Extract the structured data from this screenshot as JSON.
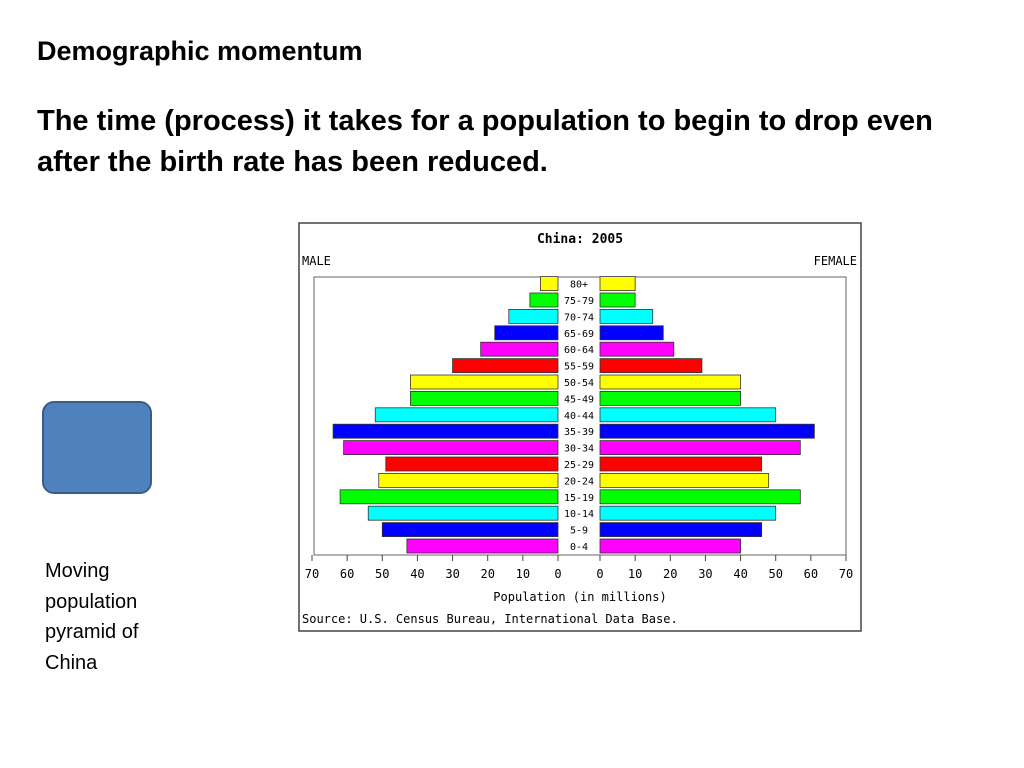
{
  "slide": {
    "heading": "Demographic momentum",
    "definition": "The time (process) it takes for a population to begin to drop even after the birth rate has been reduced.",
    "caption": "Moving population pyramid of China"
  },
  "colors": {
    "video_button": "#4f81bd",
    "bar_cycle": [
      "#ff00ff",
      "#0000ff",
      "#00ffff",
      "#00ff00",
      "#ffff00",
      "#ff0000"
    ]
  },
  "chart_data": {
    "type": "bar",
    "orientation": "horizontal-pyramid",
    "title": "China: 2005",
    "left_label": "MALE",
    "right_label": "FEMALE",
    "xlabel": "Population (in millions)",
    "source": "Source: U.S. Census Bureau, International Data Base.",
    "xlim": [
      0,
      70
    ],
    "ticks": [
      0,
      10,
      20,
      30,
      40,
      50,
      60,
      70
    ],
    "categories": [
      "0-4",
      "5-9",
      "10-14",
      "15-19",
      "20-24",
      "25-29",
      "30-34",
      "35-39",
      "40-44",
      "45-49",
      "50-54",
      "55-59",
      "60-64",
      "65-69",
      "70-74",
      "75-79",
      "80+"
    ],
    "series": [
      {
        "name": "MALE",
        "values": [
          43,
          50,
          54,
          62,
          51,
          49,
          61,
          64,
          52,
          42,
          42,
          30,
          22,
          18,
          14,
          8,
          5
        ]
      },
      {
        "name": "FEMALE",
        "values": [
          40,
          46,
          50,
          57,
          48,
          46,
          57,
          61,
          50,
          40,
          40,
          29,
          21,
          18,
          15,
          10,
          10
        ]
      }
    ]
  }
}
